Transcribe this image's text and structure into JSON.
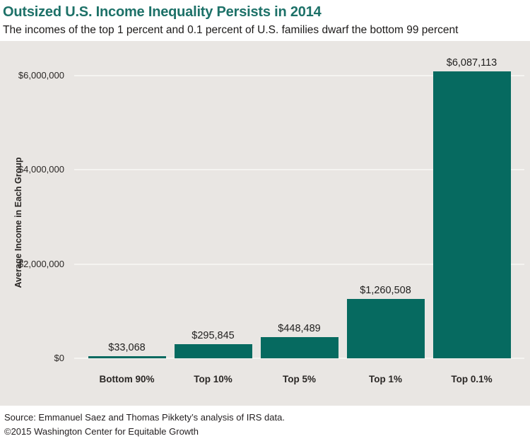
{
  "header": {
    "title": "Outsized U.S. Income Inequality Persists in 2014",
    "subtitle": "The incomes of the top 1 percent and 0.1 percent of U.S. families dwarf the bottom 99 percent"
  },
  "footer": {
    "source": "Source: Emmanuel Saez and Thomas Pikkety’s analysis of IRS data.",
    "copyright": "©2015 Washington Center for Equitable Growth"
  },
  "colors": {
    "title_accent": "#1d7168",
    "bar": "#066a60",
    "panel_bg": "#e9e6e3",
    "gridline": "#f5f4f1",
    "text": "#2a2725"
  },
  "chart_data": {
    "type": "bar",
    "title": "Outsized U.S. Income Inequality Persists in 2014",
    "subtitle": "The incomes of the top 1 percent and 0.1 percent of U.S. families dwarf the bottom 99 percent",
    "categories": [
      "Bottom 90%",
      "Top 10%",
      "Top 5%",
      "Top 1%",
      "Top 0.1%"
    ],
    "values": [
      33068,
      295845,
      448489,
      1260508,
      6087113
    ],
    "value_labels": [
      "$33,068",
      "$295,845",
      "$448,489",
      "$1,260,508",
      "$6,087,113"
    ],
    "xlabel": "",
    "ylabel": "Average Income in Each Group",
    "ylim": [
      0,
      6700000
    ],
    "yticks": [
      {
        "label": "$0",
        "value": 0
      },
      {
        "label": "$2,000,000",
        "value": 2000000
      },
      {
        "label": "$4,000,000",
        "value": 4000000
      },
      {
        "label": "$6,000,000",
        "value": 6000000
      }
    ],
    "grid": true,
    "legend": false,
    "bar_color": "#066a60"
  }
}
